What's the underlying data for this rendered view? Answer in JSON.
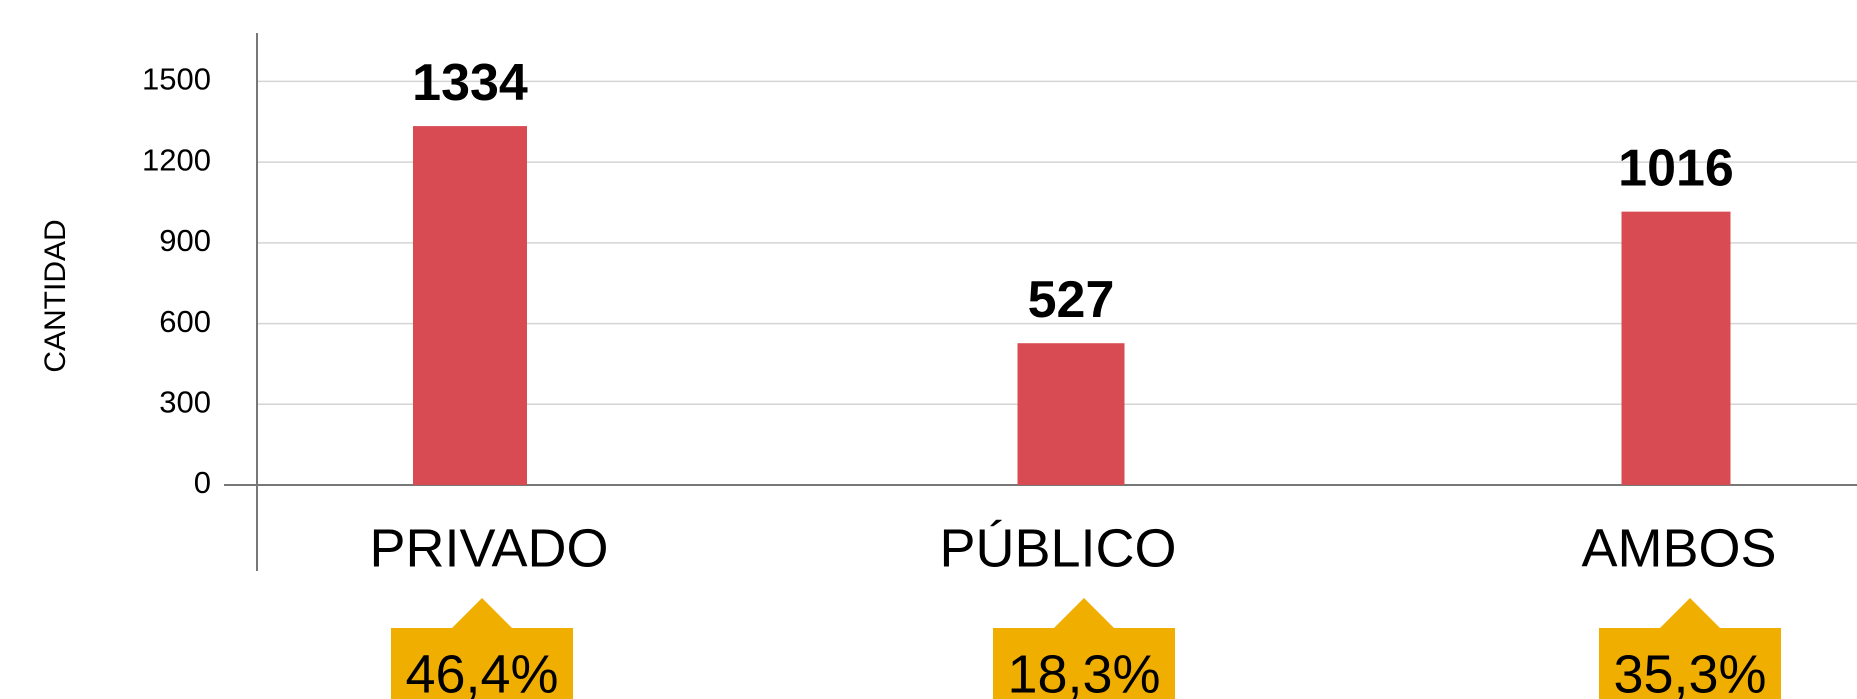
{
  "chart_data": {
    "type": "bar",
    "y_axis_label": "CANTIDAD",
    "categories": [
      "PRIVADO",
      "PÚBLICO",
      "AMBOS"
    ],
    "values": [
      1334,
      527,
      1016
    ],
    "color": "#d94b52",
    "annotations": [
      "46,4%",
      "18,3%",
      "35,3%"
    ],
    "annotation_color": "#f0ae00",
    "ylim": [
      0,
      1680
    ],
    "yticks": [
      0,
      300,
      600,
      900,
      1200,
      1500
    ],
    "grid": true
  }
}
